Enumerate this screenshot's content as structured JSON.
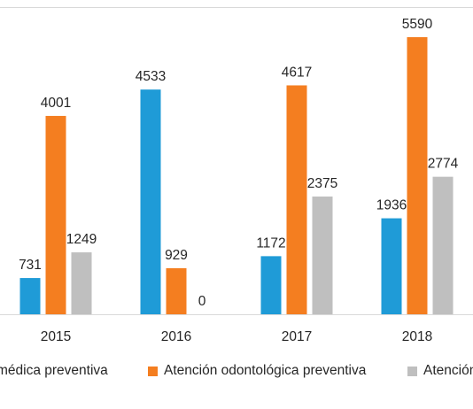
{
  "chart_data": {
    "type": "bar",
    "categories": [
      "2015",
      "2016",
      "2017",
      "2018"
    ],
    "series": [
      {
        "name": "Atención médica preventiva",
        "legend_text": "médica preventiva",
        "color": "#1f9bd7",
        "values": [
          731,
          4533,
          1172,
          1936
        ]
      },
      {
        "name": "Atención odontológica preventiva",
        "legend_text": "Atención odontológica preventiva",
        "color": "#f47e20",
        "values": [
          4001,
          929,
          4617,
          5590
        ]
      },
      {
        "name": "Atención",
        "legend_text": "Atención",
        "color": "#bfbfbf",
        "values": [
          1249,
          0,
          2375,
          2774
        ]
      }
    ],
    "ylim": [
      0,
      6000
    ],
    "grid": false,
    "legend_position": "bottom",
    "data_labels": true
  }
}
